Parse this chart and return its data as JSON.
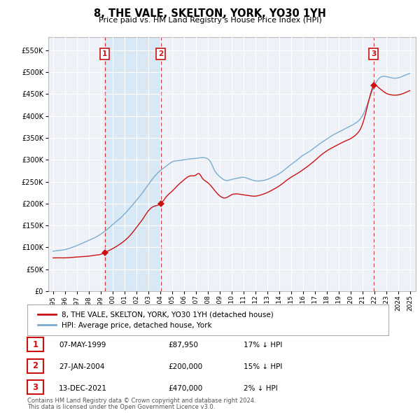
{
  "title": "8, THE VALE, SKELTON, YORK, YO30 1YH",
  "subtitle": "Price paid vs. HM Land Registry's House Price Index (HPI)",
  "legend_label_red": "8, THE VALE, SKELTON, YORK, YO30 1YH (detached house)",
  "legend_label_blue": "HPI: Average price, detached house, York",
  "footer_line1": "Contains HM Land Registry data © Crown copyright and database right 2024.",
  "footer_line2": "This data is licensed under the Open Government Licence v3.0.",
  "transactions": [
    {
      "num": 1,
      "date": "07-MAY-1999",
      "price": "£87,950",
      "hpi": "17% ↓ HPI",
      "year": 1999.36
    },
    {
      "num": 2,
      "date": "27-JAN-2004",
      "price": "£200,000",
      "hpi": "15% ↓ HPI",
      "year": 2004.07
    },
    {
      "num": 3,
      "date": "13-DEC-2021",
      "price": "£470,000",
      "hpi": "2% ↓ HPI",
      "year": 2021.95
    }
  ],
  "transaction_values": [
    87950,
    200000,
    470000
  ],
  "bg_color": "#eef2f8",
  "grid_color": "#ffffff",
  "red_color": "#cc1111",
  "blue_color": "#7aadcf",
  "shade_color": "#d8e8f4",
  "ylim": [
    0,
    580000
  ],
  "yticks": [
    0,
    50000,
    100000,
    150000,
    200000,
    250000,
    300000,
    350000,
    400000,
    450000,
    500000,
    550000
  ],
  "xlim": [
    1994.6,
    2025.5
  ],
  "xticks": [
    1995,
    1996,
    1997,
    1998,
    1999,
    2000,
    2001,
    2002,
    2003,
    2004,
    2005,
    2006,
    2007,
    2008,
    2009,
    2010,
    2011,
    2012,
    2013,
    2014,
    2015,
    2016,
    2017,
    2018,
    2019,
    2020,
    2021,
    2022,
    2023,
    2024,
    2025
  ]
}
